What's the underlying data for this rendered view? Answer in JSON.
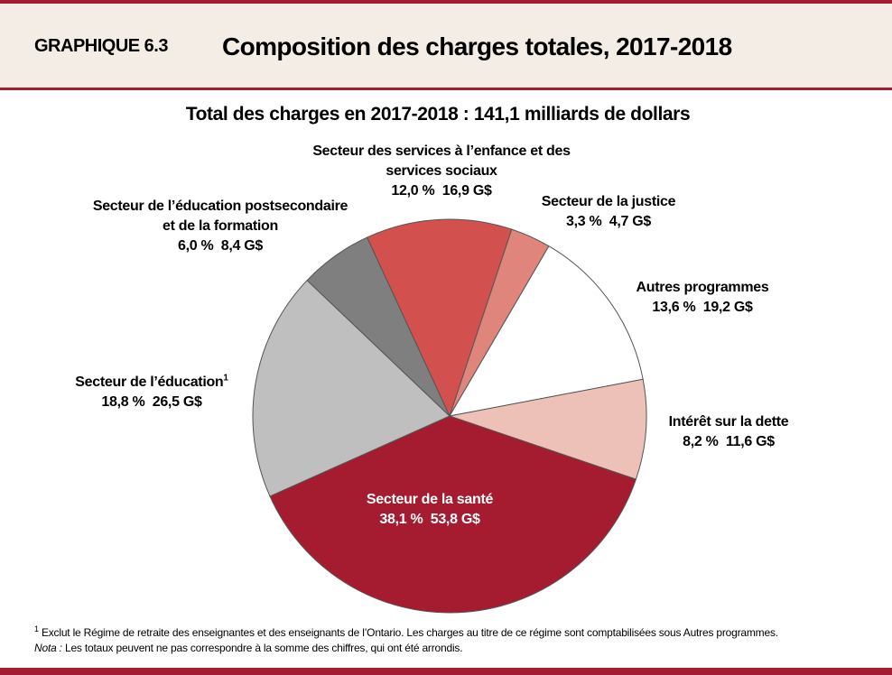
{
  "chart_data": {
    "type": "pie",
    "label": "GRAPHIQUE 6.3",
    "title": "Composition des charges totales, 2017-2018",
    "subtitle": "Total des charges en 2017-2018 : 141,1 milliards de dollars",
    "categories": [
      "Secteur des services à l’enfance et des services sociaux",
      "Secteur de la justice",
      "Autres programmes",
      "Intérêt sur la dette",
      "Secteur de la santé",
      "Secteur de l’éducation",
      "Secteur de l’éducation postsecondaire et de la formation"
    ],
    "values": [
      12.0,
      3.3,
      13.6,
      8.2,
      38.1,
      18.8,
      6.0
    ],
    "value_labels": [
      "12,0 %",
      "3,3 %",
      "13,6 %",
      "8,2 %",
      "38,1 %",
      "18,8 %",
      "6,0 %"
    ],
    "amounts": [
      16.9,
      4.7,
      19.2,
      11.6,
      53.8,
      26.5,
      8.4
    ],
    "amount_labels": [
      "16,9 G$",
      "4,7 G$",
      "19,2 G$",
      "11,6 G$",
      "53,8 G$",
      "26,5 G$",
      "8,4 G$"
    ],
    "colors": [
      "#d2514f",
      "#e0857b",
      "#ffffff",
      "#edc1b8",
      "#a51c30",
      "#bfbfbf",
      "#7f7f7f"
    ],
    "footnote_marker": "1",
    "footnote": "Exclut le Régime de retraite des enseignantes et des enseignants de l’Ontario. Les charges au titre de ce régime sont comptabilisées sous Autres programmes.",
    "note_label": "Nota :",
    "note": "Les totaux peuvent ne pas correspondre à la somme des chiffres, qui ont été arrondis."
  }
}
